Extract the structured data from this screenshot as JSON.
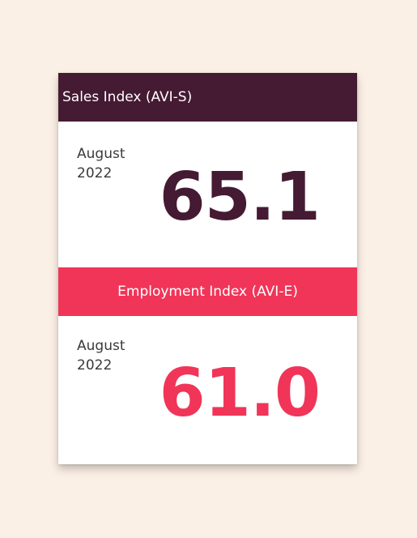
{
  "sales": {
    "title": "Sales Index (AVI-S)",
    "month": "August",
    "year": "2022",
    "value": "65.1"
  },
  "employment": {
    "title": "Employment Index (AVI-E)",
    "month": "August",
    "year": "2022",
    "value": "61.0"
  },
  "colors": {
    "background": "#fbf0e6",
    "sales_accent": "#451a33",
    "employment_accent": "#f03558",
    "text": "#3a3a3a"
  }
}
